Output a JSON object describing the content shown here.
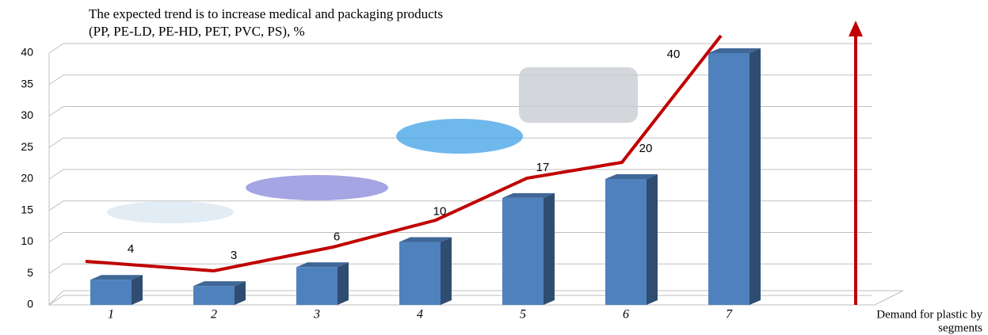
{
  "chart_data": {
    "type": "bar3d",
    "title_lines": [
      "The expected trend is to increase medical and packaging products",
      "(PP, PE-LD, PE-HD, PET, PVC, PS), %"
    ],
    "x_label_lines": [
      "Demand for plastic by",
      "segments"
    ],
    "categories": [
      "1",
      "2",
      "3",
      "4",
      "5",
      "6",
      "7"
    ],
    "values": [
      4,
      3,
      6,
      10,
      17,
      20,
      40
    ],
    "color": "#4f81bd",
    "ylim": [
      0,
      40
    ],
    "yticks": [
      0,
      5,
      10,
      15,
      20,
      25,
      30,
      35,
      40
    ],
    "grid": true
  }
}
